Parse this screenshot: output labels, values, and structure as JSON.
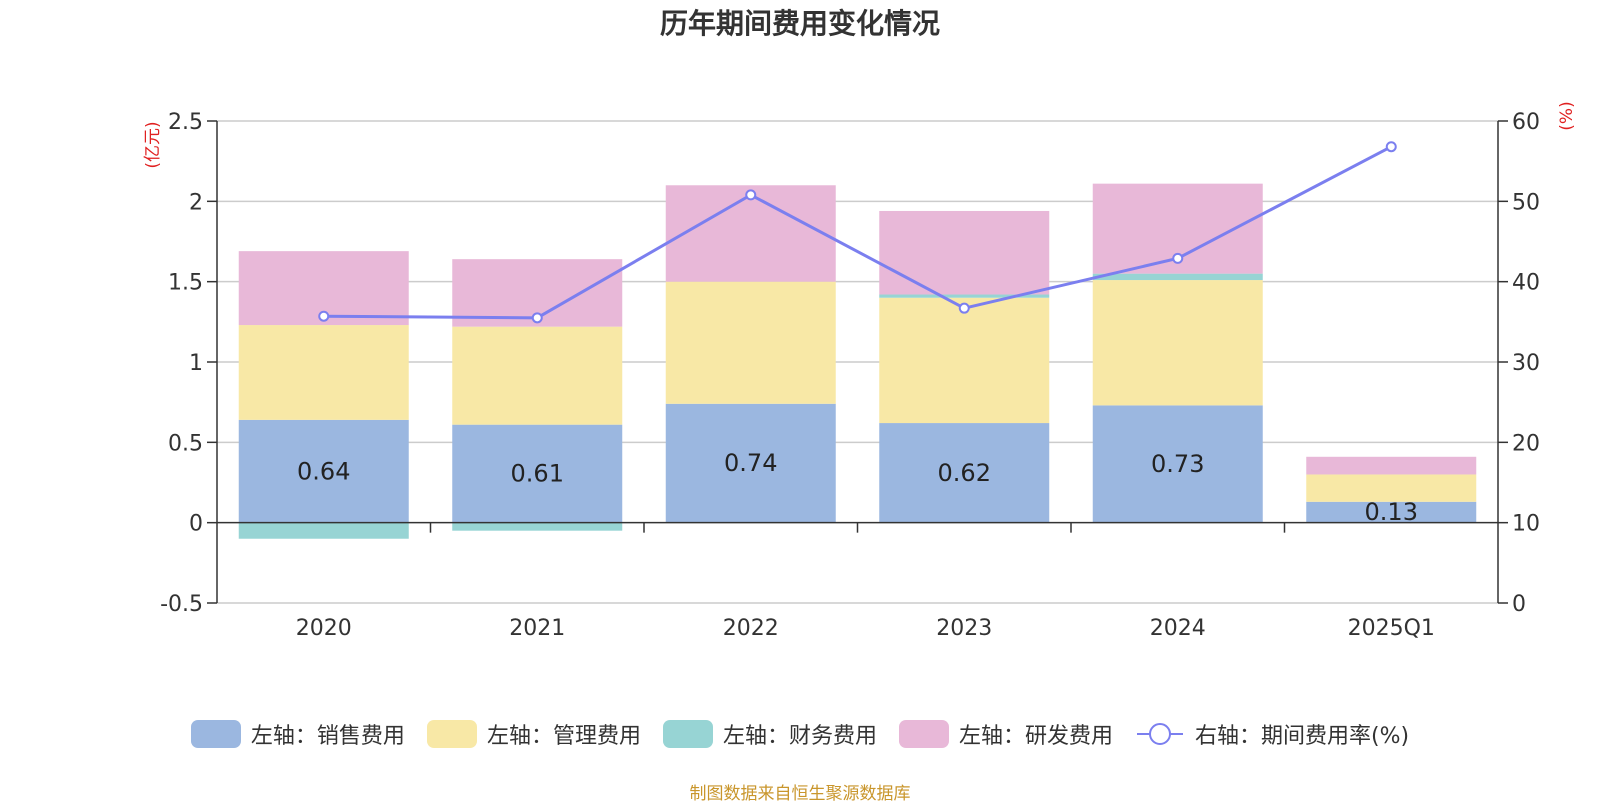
{
  "chart_data": {
    "type": "bar",
    "title": "历年期间费用变化情况",
    "categories": [
      "2020",
      "2021",
      "2022",
      "2023",
      "2024",
      "2025Q1"
    ],
    "left_axis": {
      "label": "(亿元)",
      "ylim": [
        -0.5,
        2.5
      ],
      "ticks": [
        "-0.5",
        "0",
        "0.5",
        "1",
        "1.5",
        "2",
        "2.5"
      ]
    },
    "right_axis": {
      "label": "(%)",
      "ylim": [
        0,
        60
      ],
      "ticks": [
        "0",
        "10",
        "20",
        "30",
        "40",
        "50",
        "60"
      ]
    },
    "series": [
      {
        "name": "左轴：销售费用",
        "type": "bar",
        "stack": "total",
        "color": "#9bb7e0",
        "values": [
          0.64,
          0.61,
          0.74,
          0.62,
          0.73,
          0.13
        ],
        "labels": [
          "0.64",
          "0.61",
          "0.74",
          "0.62",
          "0.73",
          "0.13"
        ]
      },
      {
        "name": "左轴：管理费用",
        "type": "bar",
        "stack": "total",
        "color": "#f8e8a6",
        "values": [
          0.59,
          0.61,
          0.76,
          0.78,
          0.78,
          0.17
        ]
      },
      {
        "name": "左轴：财务费用",
        "type": "bar",
        "stack": "total",
        "color": "#97d4d4",
        "values": [
          -0.1,
          -0.05,
          0.0,
          0.02,
          0.04,
          0.0
        ]
      },
      {
        "name": "左轴：研发费用",
        "type": "bar",
        "stack": "total",
        "color": "#e8b8d8",
        "values": [
          0.46,
          0.42,
          0.6,
          0.52,
          0.56,
          0.11
        ]
      },
      {
        "name": "右轴：期间费用率(%)",
        "type": "line",
        "axis": "right",
        "color": "#7b7fef",
        "values": [
          35.7,
          35.5,
          50.8,
          36.7,
          42.9,
          56.8
        ]
      }
    ],
    "grid": true
  },
  "source_text": "制图数据来自恒生聚源数据库"
}
